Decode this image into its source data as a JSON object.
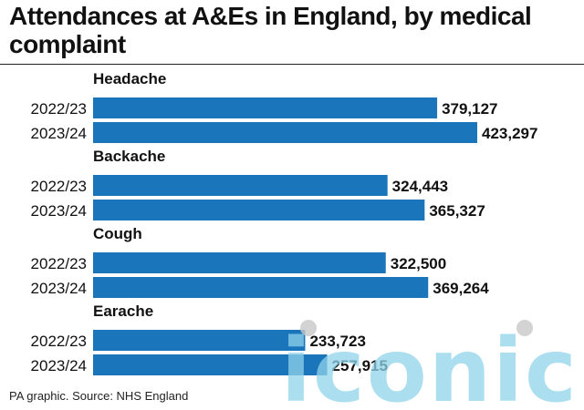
{
  "title": "Attendances at A&Es in England, by medical complaint",
  "source": "PA graphic. Source: NHS England",
  "watermark": "iconic",
  "colors": {
    "bar": "#1b75bb",
    "watermark": "#8fd3ea",
    "watermark_dot": "#c8c8c8"
  },
  "chart_data": {
    "type": "bar",
    "orientation": "horizontal",
    "title": "Attendances at A&Es in England, by medical complaint",
    "groups": [
      {
        "name": "Headache",
        "items": [
          {
            "label": "2022/23",
            "value": 379127,
            "display": "379,127"
          },
          {
            "label": "2023/24",
            "value": 423297,
            "display": "423,297"
          }
        ]
      },
      {
        "name": "Backache",
        "items": [
          {
            "label": "2022/23",
            "value": 324443,
            "display": "324,443"
          },
          {
            "label": "2023/24",
            "value": 365327,
            "display": "365,327"
          }
        ]
      },
      {
        "name": "Cough",
        "items": [
          {
            "label": "2022/23",
            "value": 322500,
            "display": "322,500"
          },
          {
            "label": "2023/24",
            "value": 369264,
            "display": "369,264"
          }
        ]
      },
      {
        "name": "Earache",
        "items": [
          {
            "label": "2022/23",
            "value": 233723,
            "display": "233,723"
          },
          {
            "label": "2023/24",
            "value": 257915,
            "display": "257,915"
          }
        ]
      }
    ],
    "xlim": [
      0,
      423297
    ],
    "grid": false,
    "legend": "none"
  }
}
